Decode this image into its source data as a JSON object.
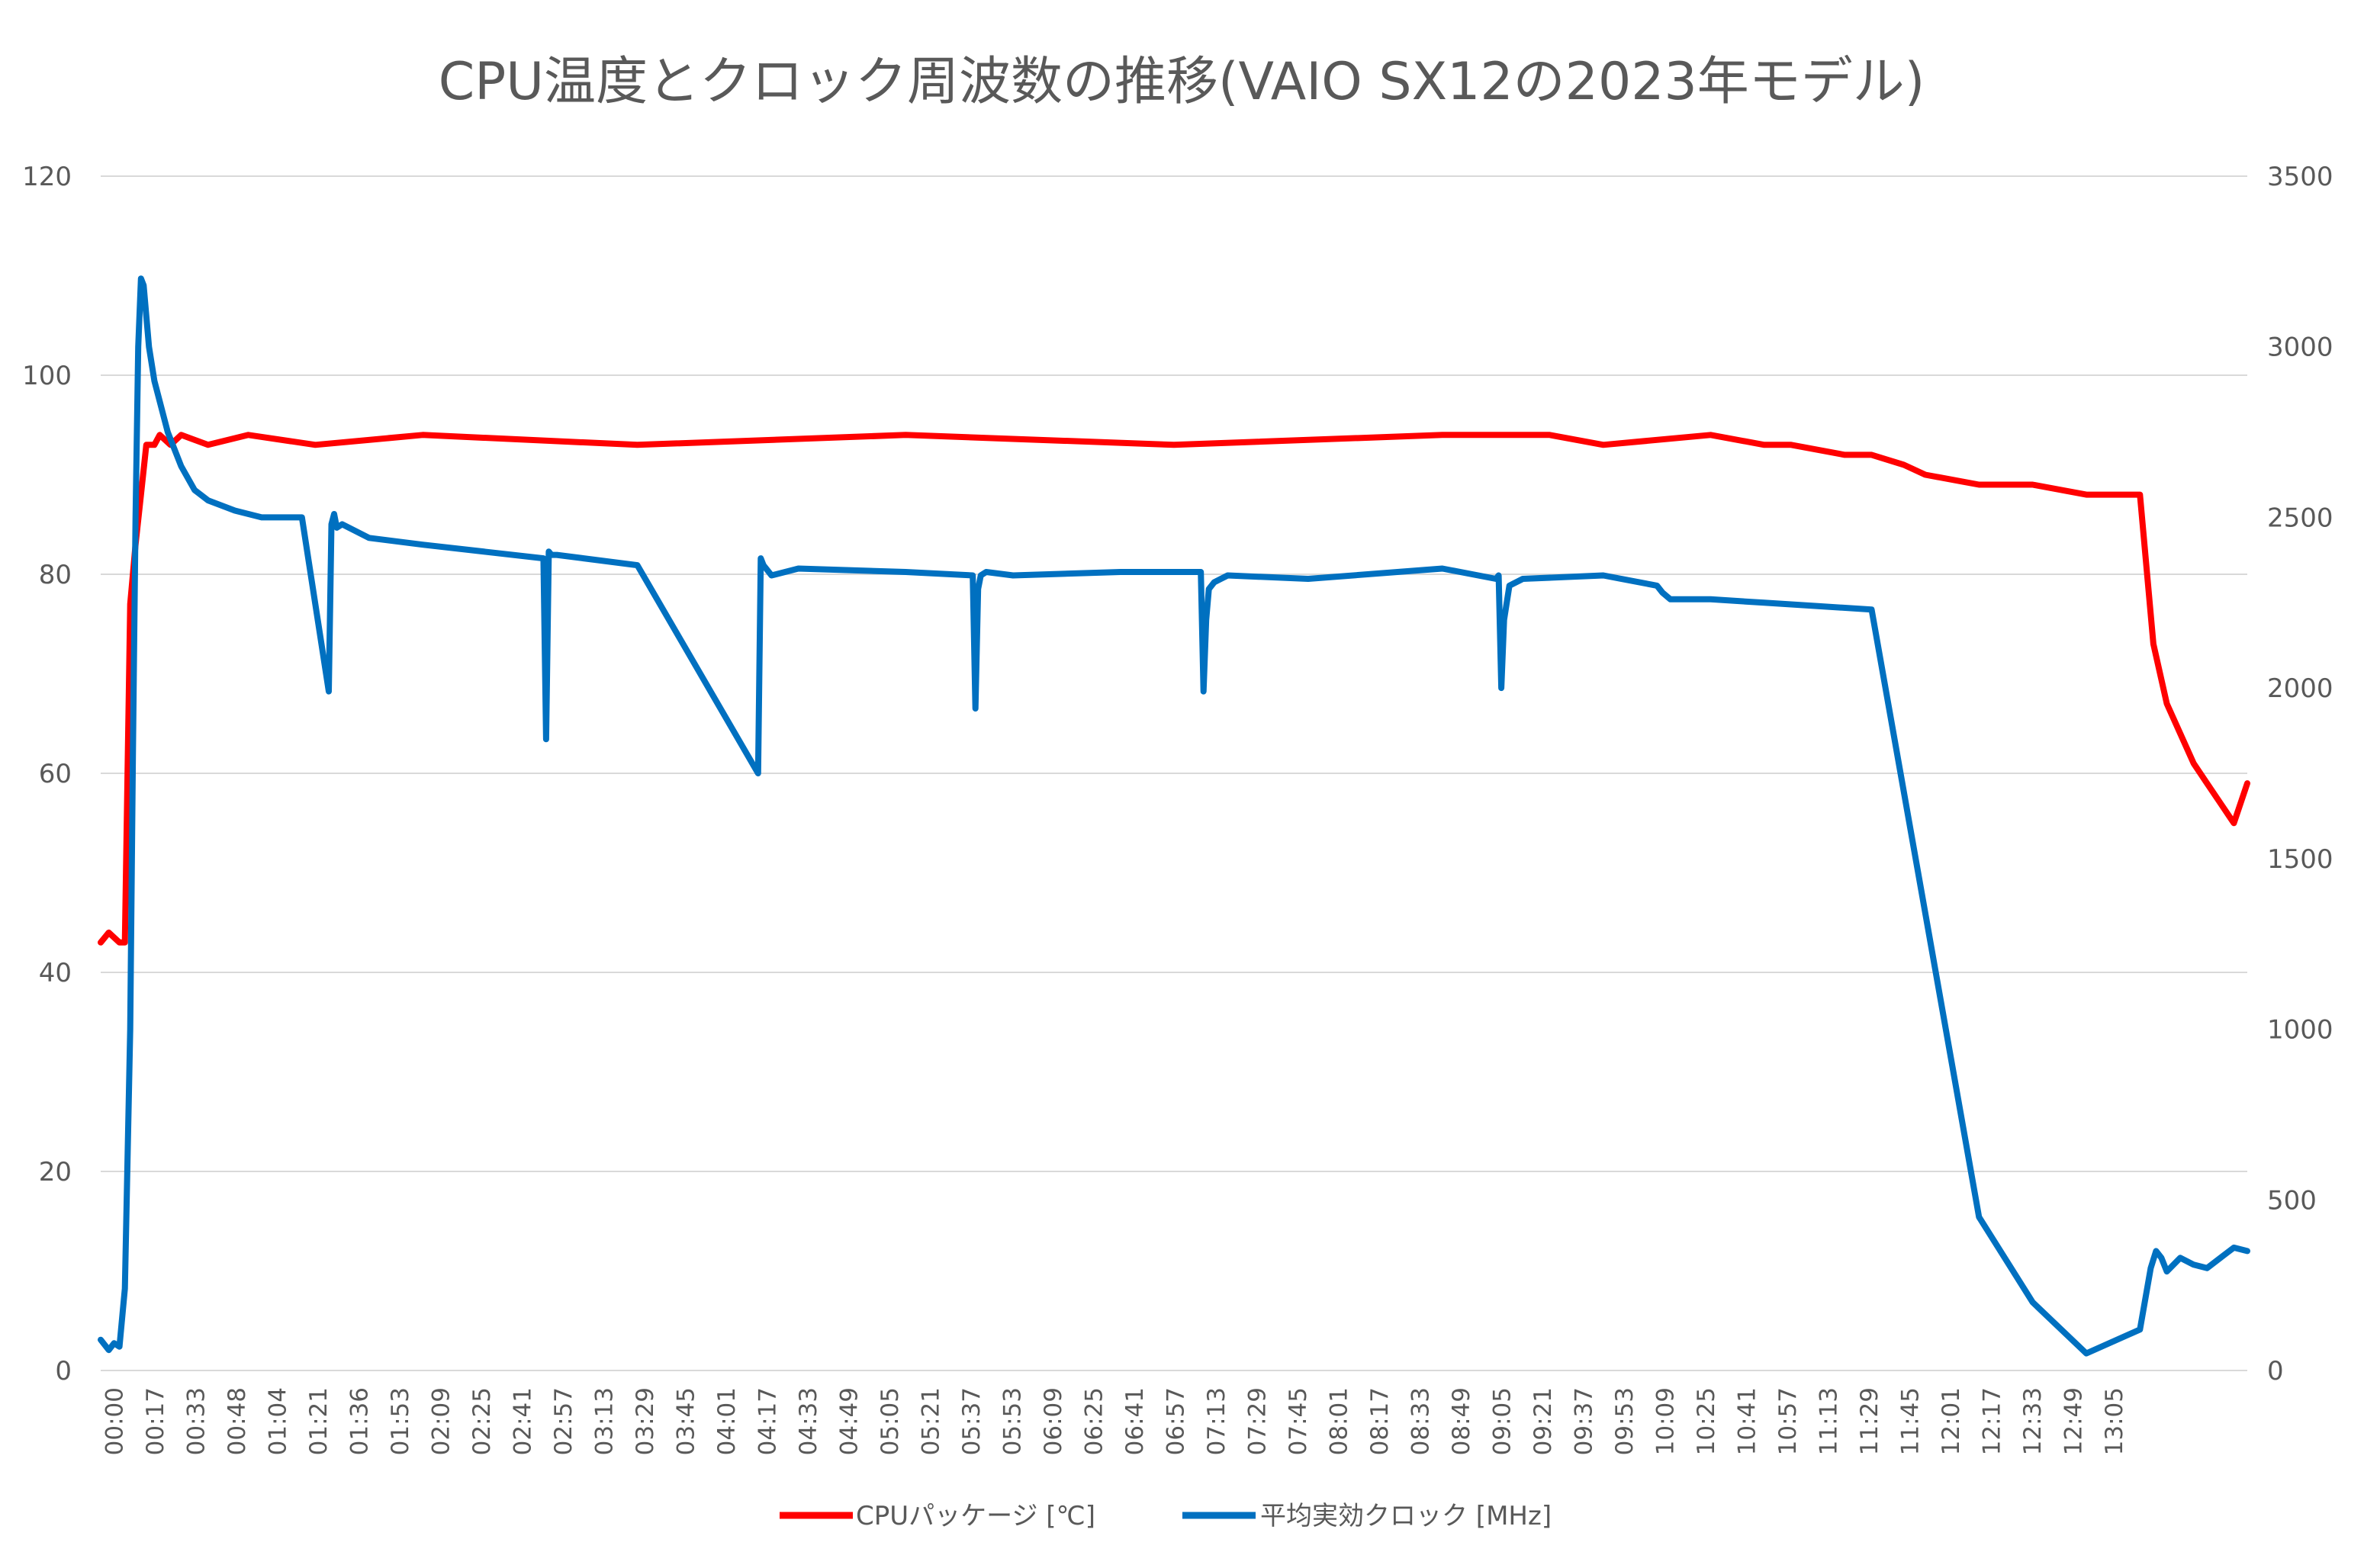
{
  "chart_data": {
    "type": "line",
    "title": "CPU温度とクロック周波数の推移(VAIO SX12の2023年モデル)",
    "xlabel": "",
    "ylabel": "",
    "y_left_lim": [
      0,
      120
    ],
    "y_left_ticks": [
      "0",
      "20",
      "40",
      "60",
      "80",
      "100",
      "120"
    ],
    "y_right_lim": [
      0,
      3500
    ],
    "y_right_ticks": [
      "0",
      "500",
      "1000",
      "1500",
      "2000",
      "2500",
      "3000",
      "3500"
    ],
    "x_ticks": [
      "00:00",
      "00:17",
      "00:33",
      "00:48",
      "01:04",
      "01:21",
      "01:36",
      "01:53",
      "02:09",
      "02:25",
      "02:41",
      "02:57",
      "03:13",
      "03:29",
      "03:45",
      "04:01",
      "04:17",
      "04:33",
      "04:49",
      "05:05",
      "05:21",
      "05:37",
      "05:53",
      "06:09",
      "06:25",
      "06:41",
      "06:57",
      "07:13",
      "07:29",
      "07:45",
      "08:01",
      "08:17",
      "08:33",
      "08:49",
      "09:05",
      "09:21",
      "09:37",
      "09:53",
      "10:09",
      "10:25",
      "10:41",
      "10:57",
      "11:13",
      "11:29",
      "11:45",
      "12:01",
      "12:17",
      "12:33",
      "12:49",
      "13:05"
    ],
    "x_minutes_range": [
      0,
      800
    ],
    "grid": true,
    "legend_position": "bottom",
    "series": [
      {
        "name": "CPUパッケージ [℃]",
        "axis": "left",
        "color": "#ff0000",
        "x": [
          0,
          3,
          7,
          9,
          11,
          13,
          15,
          17,
          19,
          20,
          22,
          26,
          30,
          40,
          55,
          80,
          120,
          200,
          300,
          400,
          500,
          540,
          560,
          600,
          620,
          630,
          650,
          660,
          672,
          680,
          700,
          720,
          740,
          760,
          765,
          770,
          775,
          780,
          785,
          790,
          795,
          800
        ],
        "y": [
          43,
          44,
          43,
          43,
          77,
          83,
          88,
          93,
          93,
          93,
          94,
          93,
          94,
          93,
          94,
          93,
          94,
          93,
          94,
          93,
          94,
          94,
          93,
          94,
          93,
          93,
          92,
          92,
          91,
          90,
          89,
          89,
          88,
          88,
          73,
          67,
          64,
          61,
          59,
          57,
          55,
          59
        ]
      },
      {
        "name": "平均実効クロック [MHz]",
        "axis": "right",
        "color": "#0070c0",
        "x": [
          0,
          3,
          5,
          7,
          9,
          11,
          12,
          13,
          14,
          15,
          16,
          18,
          20,
          25,
          30,
          35,
          40,
          50,
          60,
          75,
          85,
          86,
          87,
          88,
          90,
          100,
          120,
          165,
          166,
          167,
          168,
          170,
          180,
          200,
          245,
          246,
          247,
          248,
          250,
          260,
          300,
          325,
          326,
          327,
          328,
          330,
          340,
          380,
          410,
          411,
          412,
          413,
          415,
          420,
          450,
          500,
          520,
          521,
          522,
          523,
          525,
          530,
          560,
          580,
          582,
          585,
          600,
          620,
          640,
          660,
          700,
          720,
          740,
          760,
          764,
          766,
          768,
          770,
          775,
          780,
          785,
          790,
          795,
          800
        ],
        "y": [
          90,
          60,
          80,
          70,
          240,
          1000,
          1800,
          2500,
          3000,
          3200,
          3180,
          3000,
          2900,
          2750,
          2650,
          2580,
          2550,
          2520,
          2500,
          2500,
          1990,
          2480,
          2510,
          2470,
          2480,
          2440,
          2420,
          2380,
          1850,
          2400,
          2390,
          2390,
          2380,
          2360,
          1750,
          2380,
          2360,
          2350,
          2330,
          2350,
          2340,
          2330,
          1940,
          2290,
          2330,
          2340,
          2330,
          2340,
          2340,
          1990,
          2200,
          2290,
          2310,
          2330,
          2320,
          2350,
          2320,
          2330,
          2000,
          2200,
          2300,
          2320,
          2330,
          2300,
          2280,
          2260,
          2260,
          2250,
          2240,
          2230,
          450,
          200,
          50,
          120,
          300,
          350,
          330,
          290,
          330,
          310,
          300,
          330,
          360,
          350
        ]
      }
    ]
  },
  "legend": {
    "items": [
      "CPUパッケージ [℃]",
      "平均実効クロック [MHz]"
    ]
  }
}
